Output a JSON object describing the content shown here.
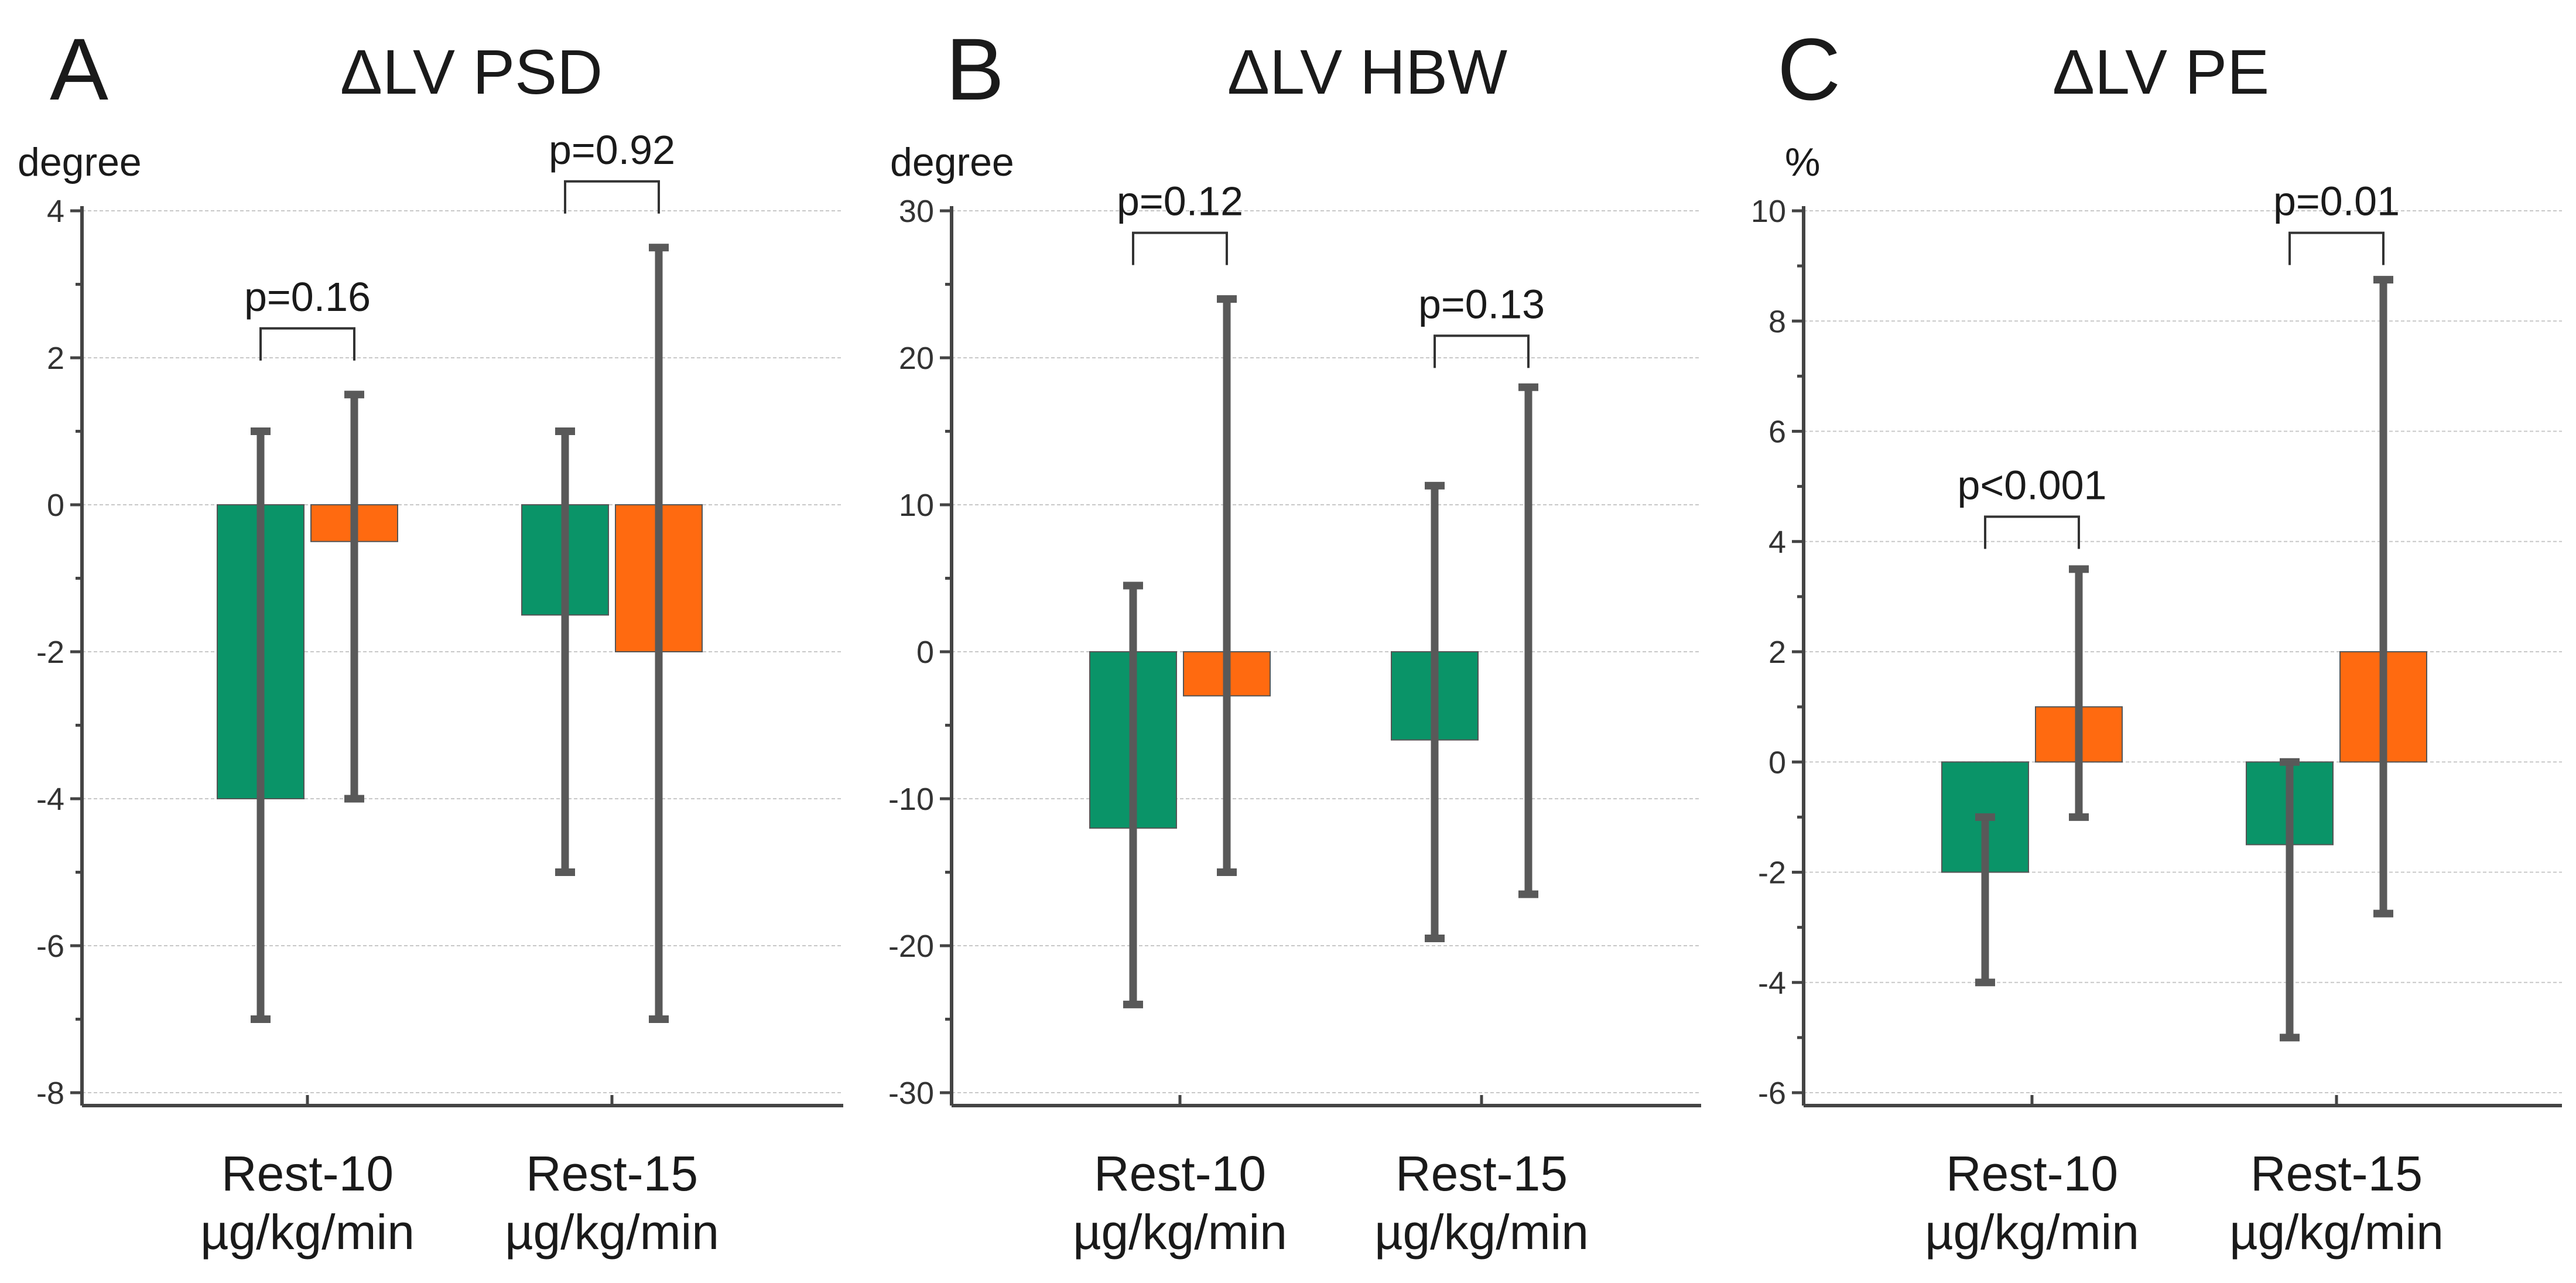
{
  "colors": {
    "series_a": "#0a9468",
    "series_b": "#ff6a10"
  },
  "chart_data": [
    {
      "type": "bar",
      "panel_letter": "A",
      "title": "ΔLV PSD",
      "ylabel": "degree",
      "ylim": [
        -8,
        4
      ],
      "yticks": [
        -8,
        -6,
        -4,
        -2,
        0,
        2,
        4
      ],
      "categories": [
        {
          "line1": "Rest-10",
          "line2": "µg/kg/min"
        },
        {
          "line1": "Rest-15",
          "line2": "µg/kg/min"
        }
      ],
      "series": [
        {
          "name": "series_a",
          "values": [
            -4,
            -1.5
          ],
          "err_low": [
            -7,
            -5
          ],
          "err_high": [
            1,
            1
          ]
        },
        {
          "name": "series_b",
          "values": [
            -0.5,
            -2
          ],
          "err_low": [
            -4,
            -7
          ],
          "err_high": [
            1.5,
            3.5
          ]
        }
      ],
      "comparisons": [
        {
          "label": "p=0.16",
          "y": 2.4
        },
        {
          "label": "p=0.92",
          "y": 4.4
        }
      ],
      "grid": true
    },
    {
      "type": "bar",
      "panel_letter": "B",
      "title": "ΔLV HBW",
      "ylabel": "degree",
      "ylim": [
        -30,
        30
      ],
      "yticks": [
        -30,
        -20,
        -10,
        0,
        10,
        20,
        30
      ],
      "categories": [
        {
          "line1": "Rest-10",
          "line2": "µg/kg/min"
        },
        {
          "line1": "Rest-15",
          "line2": "µg/kg/min"
        }
      ],
      "series": [
        {
          "name": "series_a",
          "values": [
            -12,
            -6
          ],
          "err_low": [
            -24,
            -19.5
          ],
          "err_high": [
            4.5,
            11.3
          ]
        },
        {
          "name": "series_b",
          "values": [
            -3,
            0
          ],
          "err_low": [
            -15,
            -16.5
          ],
          "err_high": [
            24,
            18
          ]
        }
      ],
      "comparisons": [
        {
          "label": "p=0.12",
          "y": 28.5
        },
        {
          "label": "p=0.13",
          "y": 21.5
        }
      ],
      "grid": true
    },
    {
      "type": "bar",
      "panel_letter": "C",
      "title": "ΔLV PE",
      "ylabel": "%",
      "ylim": [
        -6,
        10
      ],
      "yticks": [
        -6,
        -4,
        -2,
        0,
        2,
        4,
        6,
        8,
        10
      ],
      "categories": [
        {
          "line1": "Rest-10",
          "line2": "µg/kg/min"
        },
        {
          "line1": "Rest-15",
          "line2": "µg/kg/min"
        }
      ],
      "series": [
        {
          "name": "series_a",
          "values": [
            -2,
            -1.5
          ],
          "err_low": [
            -4,
            -5
          ],
          "err_high": [
            -1,
            0
          ]
        },
        {
          "name": "series_b",
          "values": [
            1,
            2
          ],
          "err_low": [
            -1,
            -2.75
          ],
          "err_high": [
            3.5,
            8.75
          ]
        }
      ],
      "comparisons": [
        {
          "label": "p<0.001",
          "y": 4.45
        },
        {
          "label": "p=0.01",
          "y": 9.6
        }
      ],
      "grid": true
    }
  ]
}
